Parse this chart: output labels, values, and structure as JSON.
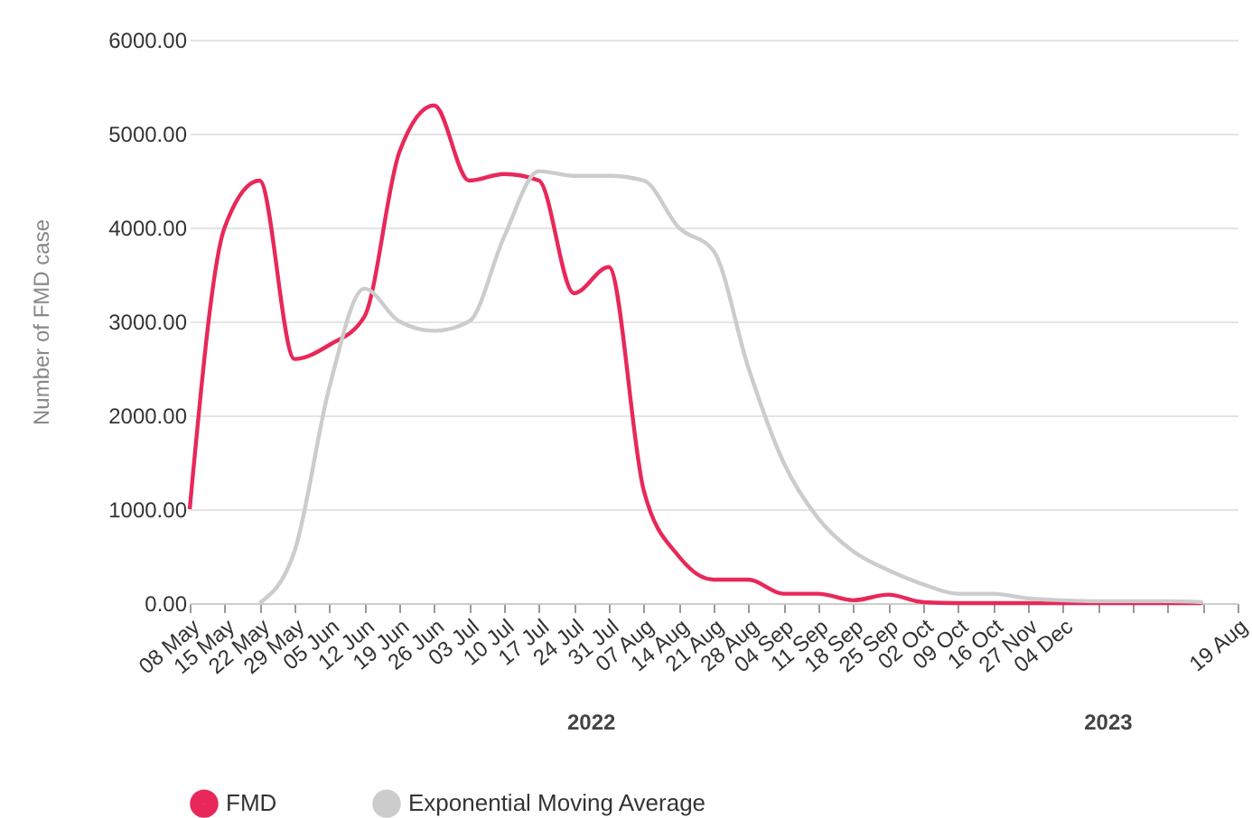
{
  "chart_data": {
    "type": "line",
    "ylabel": "Number of FMD case",
    "categories": [
      "08 May",
      "15 May",
      "22 May",
      "29 May",
      "05 Jun",
      "12 Jun",
      "19 Jun",
      "26 Jun",
      "03 Jul",
      "10 Jul",
      "17 Jul",
      "24 Jul",
      "31 Jul",
      "07 Aug",
      "14 Aug",
      "21 Aug",
      "28 Aug",
      "04 Sep",
      "11 Sep",
      "18 Sep",
      "25 Sep",
      "02 Oct",
      "09 Oct",
      "16 Oct",
      "27 Nov",
      "04 Dec",
      null,
      null,
      null,
      null,
      "19 Aug"
    ],
    "series": [
      {
        "name": "FMD",
        "color": "#e8285a",
        "values": [
          1000,
          4000,
          4500,
          2600,
          2750,
          3050,
          4800,
          5300,
          4500,
          4570,
          4500,
          3300,
          3580,
          1200,
          500,
          250,
          250,
          100,
          100,
          30,
          90,
          10,
          0,
          0,
          0,
          0,
          0,
          0,
          0,
          0,
          null
        ]
      },
      {
        "name": "Exponential Moving Average",
        "color": "#cccccc",
        "values": [
          null,
          null,
          0,
          550,
          2300,
          3350,
          3000,
          2900,
          3000,
          3900,
          4600,
          4550,
          4550,
          4500,
          4000,
          3750,
          2500,
          1500,
          900,
          550,
          350,
          200,
          100,
          100,
          50,
          30,
          20,
          20,
          20,
          10,
          null
        ]
      }
    ],
    "ylim": [
      0,
      6000
    ],
    "yticks": [
      {
        "value": 0,
        "label": "0.00"
      },
      {
        "value": 1000,
        "label": "1000.00"
      },
      {
        "value": 2000,
        "label": "2000.00"
      },
      {
        "value": 3000,
        "label": "3000.00"
      },
      {
        "value": 4000,
        "label": "4000.00"
      },
      {
        "value": 5000,
        "label": "5000.00"
      },
      {
        "value": 6000,
        "label": "6000.00"
      }
    ],
    "grid": "y",
    "legend": "bottom",
    "annotations": [
      "2022",
      "2023"
    ]
  }
}
